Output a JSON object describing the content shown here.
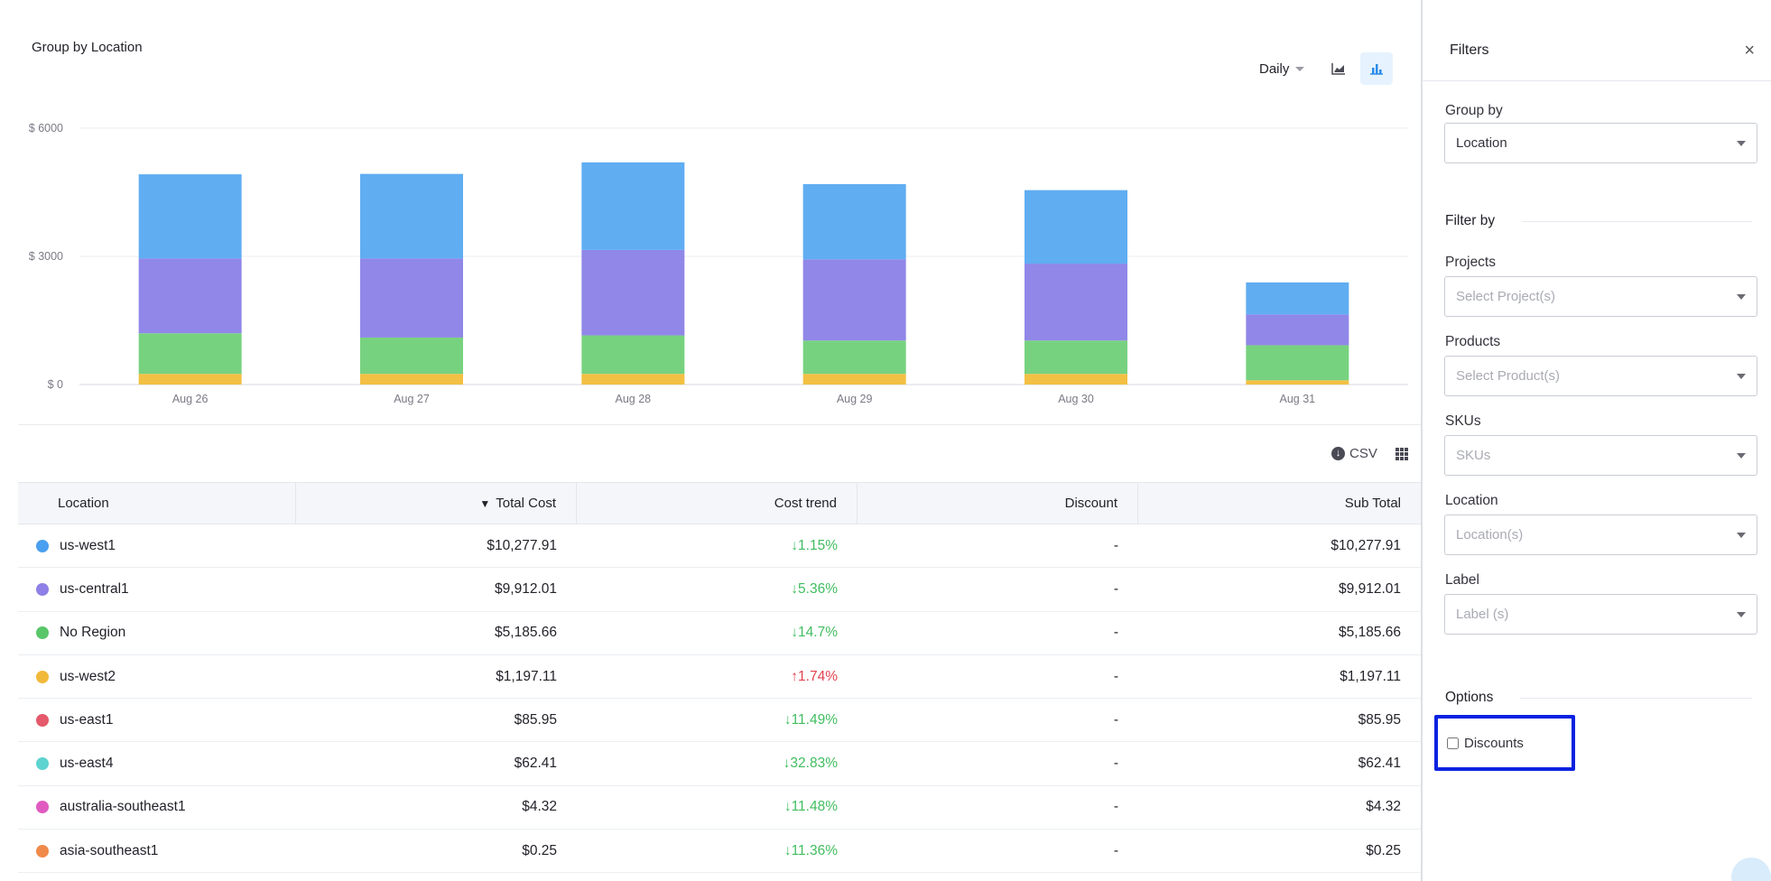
{
  "chart": {
    "title": "Group by Location",
    "period": "Daily",
    "icons": {
      "area": "area-chart-icon",
      "bar": "bar-chart-icon"
    }
  },
  "chart_data": {
    "type": "bar",
    "stacked": true,
    "categories": [
      "Aug 26",
      "Aug 27",
      "Aug 28",
      "Aug 29",
      "Aug 30",
      "Aug 31"
    ],
    "y_ticks": [
      "$ 6000",
      "$ 3000",
      "$ 0"
    ],
    "ylim": [
      0,
      6000
    ],
    "grid": true,
    "series": [
      {
        "name": "us-west2",
        "color": "#f2c043",
        "values": [
          250,
          250,
          250,
          250,
          250,
          100
        ]
      },
      {
        "name": "No Region",
        "color": "#77d27f",
        "values": [
          950,
          850,
          900,
          780,
          780,
          820
        ]
      },
      {
        "name": "us-central1",
        "color": "#9087e8",
        "values": [
          1750,
          1850,
          2000,
          1900,
          1800,
          720
        ]
      },
      {
        "name": "us-west1",
        "color": "#60adf2",
        "values": [
          1970,
          1980,
          2050,
          1760,
          1720,
          750
        ]
      }
    ]
  },
  "table_tools": {
    "csv_label": "CSV"
  },
  "table": {
    "headers": {
      "location": "Location",
      "sort_indicator": "▼",
      "total_cost": "Total Cost",
      "cost_trend": "Cost trend",
      "discount": "Discount",
      "sub_total": "Sub Total"
    },
    "rows": [
      {
        "location": "us-west1",
        "color": "#4b9ff0",
        "total": "$10,277.91",
        "trend": "↓1.15%",
        "trend_dir": "down",
        "discount": "-",
        "sub_total": "$10,277.91"
      },
      {
        "location": "us-central1",
        "color": "#8e80e6",
        "total": "$9,912.01",
        "trend": "↓5.36%",
        "trend_dir": "down",
        "discount": "-",
        "sub_total": "$9,912.01"
      },
      {
        "location": "No Region",
        "color": "#59c66a",
        "total": "$5,185.66",
        "trend": "↓14.7%",
        "trend_dir": "down",
        "discount": "-",
        "sub_total": "$5,185.66"
      },
      {
        "location": "us-west2",
        "color": "#f1b93a",
        "total": "$1,197.11",
        "trend": "↑1.74%",
        "trend_dir": "up",
        "discount": "-",
        "sub_total": "$1,197.11"
      },
      {
        "location": "us-east1",
        "color": "#e45a6a",
        "total": "$85.95",
        "trend": "↓11.49%",
        "trend_dir": "down",
        "discount": "-",
        "sub_total": "$85.95"
      },
      {
        "location": "us-east4",
        "color": "#5ed3cf",
        "total": "$62.41",
        "trend": "↓32.83%",
        "trend_dir": "down",
        "discount": "-",
        "sub_total": "$62.41"
      },
      {
        "location": "australia-southeast1",
        "color": "#e05bc0",
        "total": "$4.32",
        "trend": "↓11.48%",
        "trend_dir": "down",
        "discount": "-",
        "sub_total": "$4.32"
      },
      {
        "location": "asia-southeast1",
        "color": "#f08a4b",
        "total": "$0.25",
        "trend": "↓11.36%",
        "trend_dir": "down",
        "discount": "-",
        "sub_total": "$0.25"
      }
    ]
  },
  "sidebar": {
    "title": "Filters",
    "close": "×",
    "group_by_label": "Group by",
    "group_by_value": "Location",
    "filter_by_label": "Filter by",
    "projects_label": "Projects",
    "projects_placeholder": "Select Project(s)",
    "products_label": "Products",
    "products_placeholder": "Select Product(s)",
    "skus_label": "SKUs",
    "skus_placeholder": "SKUs",
    "location_label": "Location",
    "location_placeholder": "Location(s)",
    "label_label": "Label",
    "label_placeholder": "Label (s)",
    "options_label": "Options",
    "discounts_label": "Discounts"
  }
}
